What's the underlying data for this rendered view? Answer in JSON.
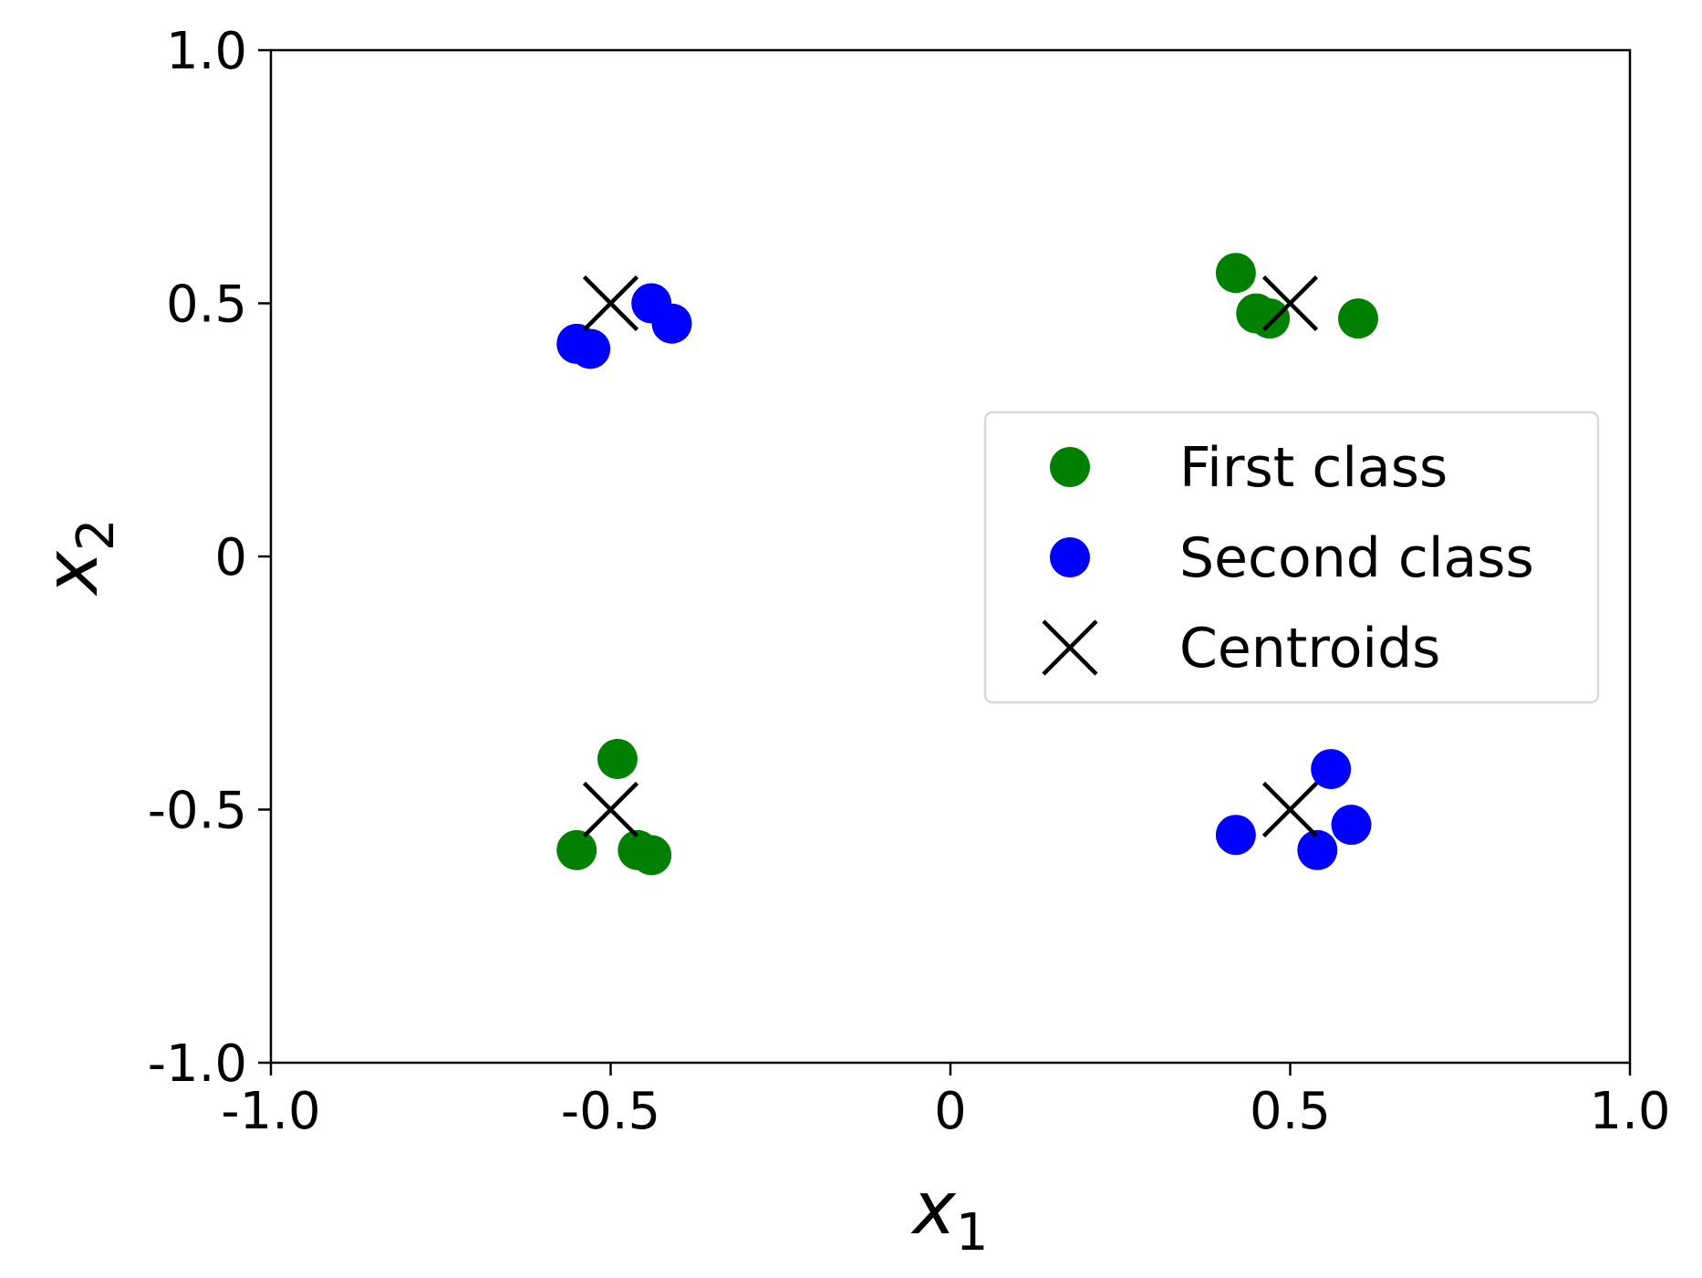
{
  "chart_data": {
    "type": "scatter",
    "xlabel": "x",
    "xlabel_sub": "1",
    "ylabel": "x",
    "ylabel_sub": "2",
    "xlim": [
      -1.0,
      1.0
    ],
    "ylim": [
      -1.0,
      1.0
    ],
    "x_ticks": [
      {
        "value": -1.0,
        "label": "-1.0"
      },
      {
        "value": -0.5,
        "label": "-0.5"
      },
      {
        "value": 0,
        "label": "0"
      },
      {
        "value": 0.5,
        "label": "0.5"
      },
      {
        "value": 1.0,
        "label": "1.0"
      }
    ],
    "y_ticks": [
      {
        "value": -1.0,
        "label": "-1.0"
      },
      {
        "value": -0.5,
        "label": "-0.5"
      },
      {
        "value": 0,
        "label": "0"
      },
      {
        "value": 0.5,
        "label": "0.5"
      },
      {
        "value": 1.0,
        "label": "1.0"
      }
    ],
    "grid": false,
    "legend_position": "center-right",
    "series": [
      {
        "name": "First class",
        "marker": "circle",
        "color": "#008000",
        "points": [
          [
            0.42,
            0.56
          ],
          [
            0.45,
            0.48
          ],
          [
            0.47,
            0.47
          ],
          [
            0.6,
            0.47
          ],
          [
            -0.49,
            -0.4
          ],
          [
            -0.55,
            -0.58
          ],
          [
            -0.46,
            -0.58
          ],
          [
            -0.44,
            -0.59
          ]
        ]
      },
      {
        "name": "Second class",
        "marker": "circle",
        "color": "#0000ff",
        "points": [
          [
            -0.44,
            0.5
          ],
          [
            -0.41,
            0.46
          ],
          [
            -0.55,
            0.42
          ],
          [
            -0.53,
            0.41
          ],
          [
            0.56,
            -0.42
          ],
          [
            0.59,
            -0.53
          ],
          [
            0.42,
            -0.55
          ],
          [
            0.54,
            -0.58
          ]
        ]
      },
      {
        "name": "Centroids",
        "marker": "x",
        "color": "#000000",
        "points": [
          [
            -0.5,
            0.5
          ],
          [
            0.5,
            0.5
          ],
          [
            -0.5,
            -0.5
          ],
          [
            0.5,
            -0.5
          ]
        ]
      }
    ]
  }
}
